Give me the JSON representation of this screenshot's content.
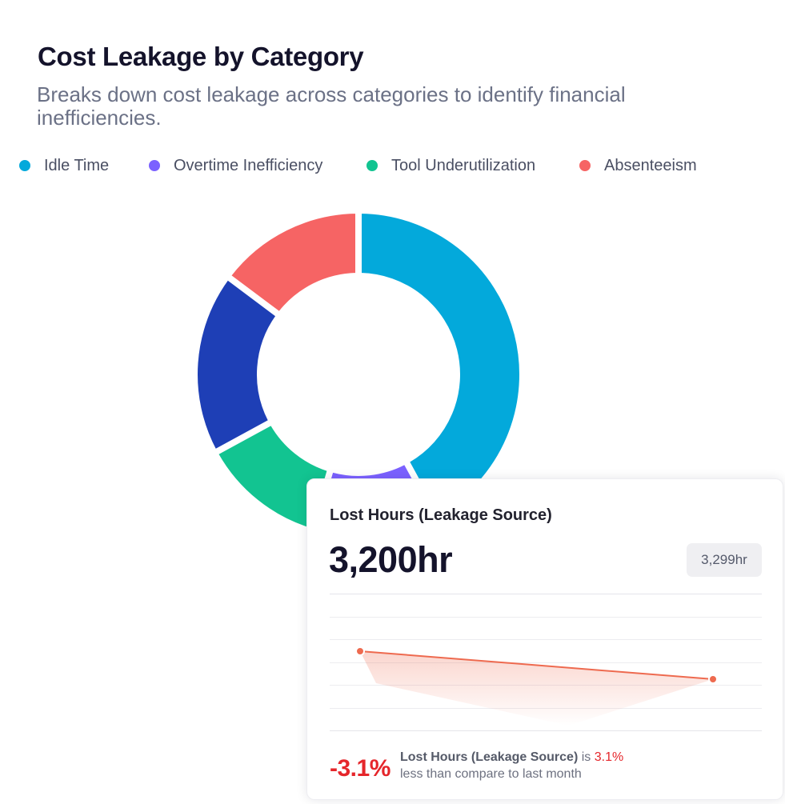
{
  "header": {
    "title": "Cost Leakage by Category",
    "subtitle": "Breaks down cost leakage across categories to identify financial inefficiencies."
  },
  "chart_data": {
    "type": "pie",
    "variant": "donut",
    "legend_position": "top",
    "series": [
      {
        "name": "Idle Time",
        "value": 37,
        "color": "#03A9DB"
      },
      {
        "name": "Overtime Inefficiency",
        "value": 11,
        "color": "#7B61FF"
      },
      {
        "name": "Tool Underutilization",
        "value": 11,
        "color": "#12C491"
      },
      {
        "name": "Absenteeism",
        "value": 13,
        "color": "#F66464"
      },
      {
        "name": "",
        "value": 16,
        "color": "#1E3FB6"
      }
    ],
    "slice_order_clockwise_from_top": [
      "Idle Time",
      "Overtime Inefficiency",
      "Tool Underutilization",
      "",
      "Absenteeism"
    ]
  },
  "card": {
    "title": "Lost Hours (Leakage Source)",
    "value": "3,200hr",
    "previous_value": "3,299hr",
    "change_pct": "-3.1%",
    "description_bold": "Lost Hours (Leakage Source)",
    "description_is": "is",
    "description_pct": "3.1%",
    "description_rest": "less than compare to last month",
    "trend": {
      "type": "line",
      "points": [
        3299,
        3200
      ],
      "color": "#EE6A4F",
      "grid": true
    }
  }
}
